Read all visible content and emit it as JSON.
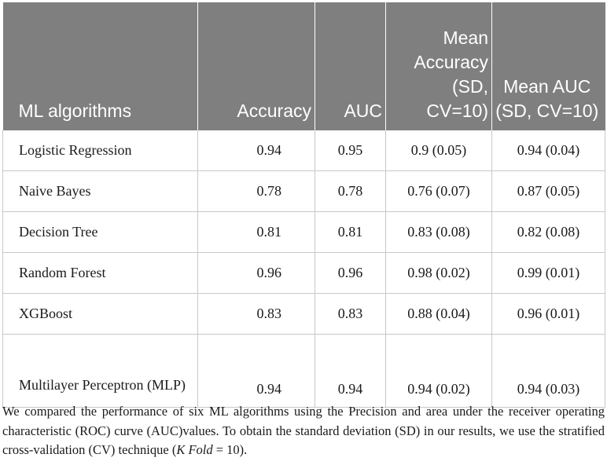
{
  "table": {
    "headers": [
      "ML algorithms",
      "Accuracy",
      "AUC",
      "Mean Accuracy (SD, CV=10)",
      "Mean AUC (SD, CV=10)"
    ],
    "rows": [
      [
        "Logistic Regression",
        "0.94",
        "0.95",
        "0.9 (0.05)",
        "0.94 (0.04)"
      ],
      [
        "Naive Bayes",
        "0.78",
        "0.78",
        "0.76 (0.07)",
        "0.87 (0.05)"
      ],
      [
        "Decision Tree",
        "0.81",
        "0.81",
        "0.83 (0.08)",
        "0.82 (0.08)"
      ],
      [
        "Random Forest",
        "0.96",
        "0.96",
        "0.98 (0.02)",
        "0.99 (0.01)"
      ],
      [
        "XGBoost",
        "0.83",
        "0.83",
        "0.88 (0.04)",
        "0.96 (0.01)"
      ],
      [
        "Multilayer Perceptron (MLP)",
        "0.94",
        "0.94",
        "0.94 (0.02)",
        "0.94 (0.03)"
      ]
    ]
  },
  "caption": {
    "text": "We compared the performance of six ML algorithms using the Precision and area under the receiver operating characteristic (ROC) curve (AUC)values. To obtain the standard deviation (SD) in our results, we use the stratified cross-validation (CV) technique (",
    "italic": "K Fold",
    "suffix": " = 10)."
  },
  "colors": {
    "header_bg": "#7f7f7f",
    "header_text": "#ffffff",
    "grid": "#c8c8c8"
  }
}
